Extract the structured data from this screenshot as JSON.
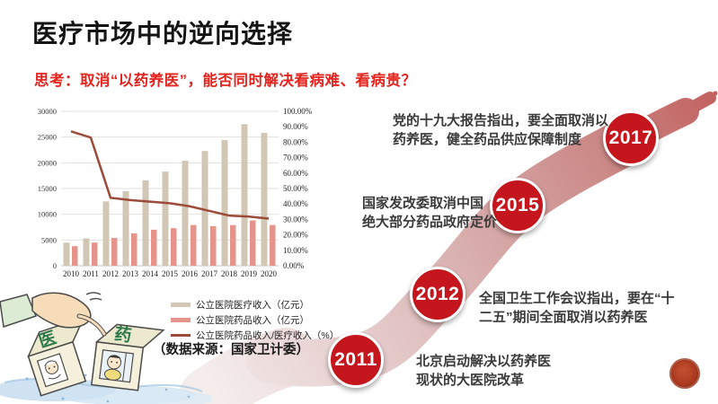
{
  "slide": {
    "title": "医疗市场中的逆向选择",
    "subtitle": "思考：取消“以药养医”，能否同时解决看病难、看病贵？"
  },
  "chart": {
    "source_note": "（数据来源：国家卫计委）",
    "chart_data": {
      "type": "bar+line",
      "categories": [
        "2010",
        "2011",
        "2012",
        "2013",
        "2014",
        "2015",
        "2016",
        "2017",
        "2018",
        "2019",
        "2020"
      ],
      "series": [
        {
          "name": "公立医院医疗收入（亿元）",
          "type": "bar",
          "axis": "left",
          "color": "#D2C7B4",
          "values": [
            4500,
            5300,
            12500,
            14500,
            16600,
            18300,
            20400,
            22300,
            24400,
            27500,
            25800
          ]
        },
        {
          "name": "公立医院药品收入（亿元）",
          "type": "bar",
          "axis": "left",
          "color": "#E6938C",
          "values": [
            3800,
            4500,
            5400,
            6300,
            7000,
            7300,
            7900,
            7700,
            7900,
            8800,
            7900
          ]
        },
        {
          "name": "公立医院药品收入/医疗收入（%）",
          "type": "line",
          "axis": "right",
          "color": "#9C4A3A",
          "values": [
            87,
            83,
            44,
            42.5,
            41.5,
            40.5,
            38.5,
            35.5,
            32.5,
            31.8,
            30.5
          ]
        }
      ],
      "left_axis": {
        "min": 0,
        "max": 30000,
        "step": 5000
      },
      "right_axis": {
        "min": 0,
        "max": 100,
        "step": 10,
        "suffix": "%"
      },
      "grid": true,
      "legend_position": "bottom"
    }
  },
  "timeline": {
    "circle_color": "#C4161C",
    "items": [
      {
        "year": "2011",
        "text": "北京启动解决以药养医\n现状的大医院改革"
      },
      {
        "year": "2012",
        "text": "全国卫生工作会议指出，要在“十\n二五”期间全面取消以药养医"
      },
      {
        "year": "2015",
        "text": "国家发改委取消中国\n绝大部分药品政府定价"
      },
      {
        "year": "2017",
        "text": "党的十九大报告指出，要全面取消以\n药养医，健全药品供应保障制度"
      }
    ]
  },
  "cartoon": {
    "left_cube_char": "医",
    "right_cube_char": "药"
  }
}
